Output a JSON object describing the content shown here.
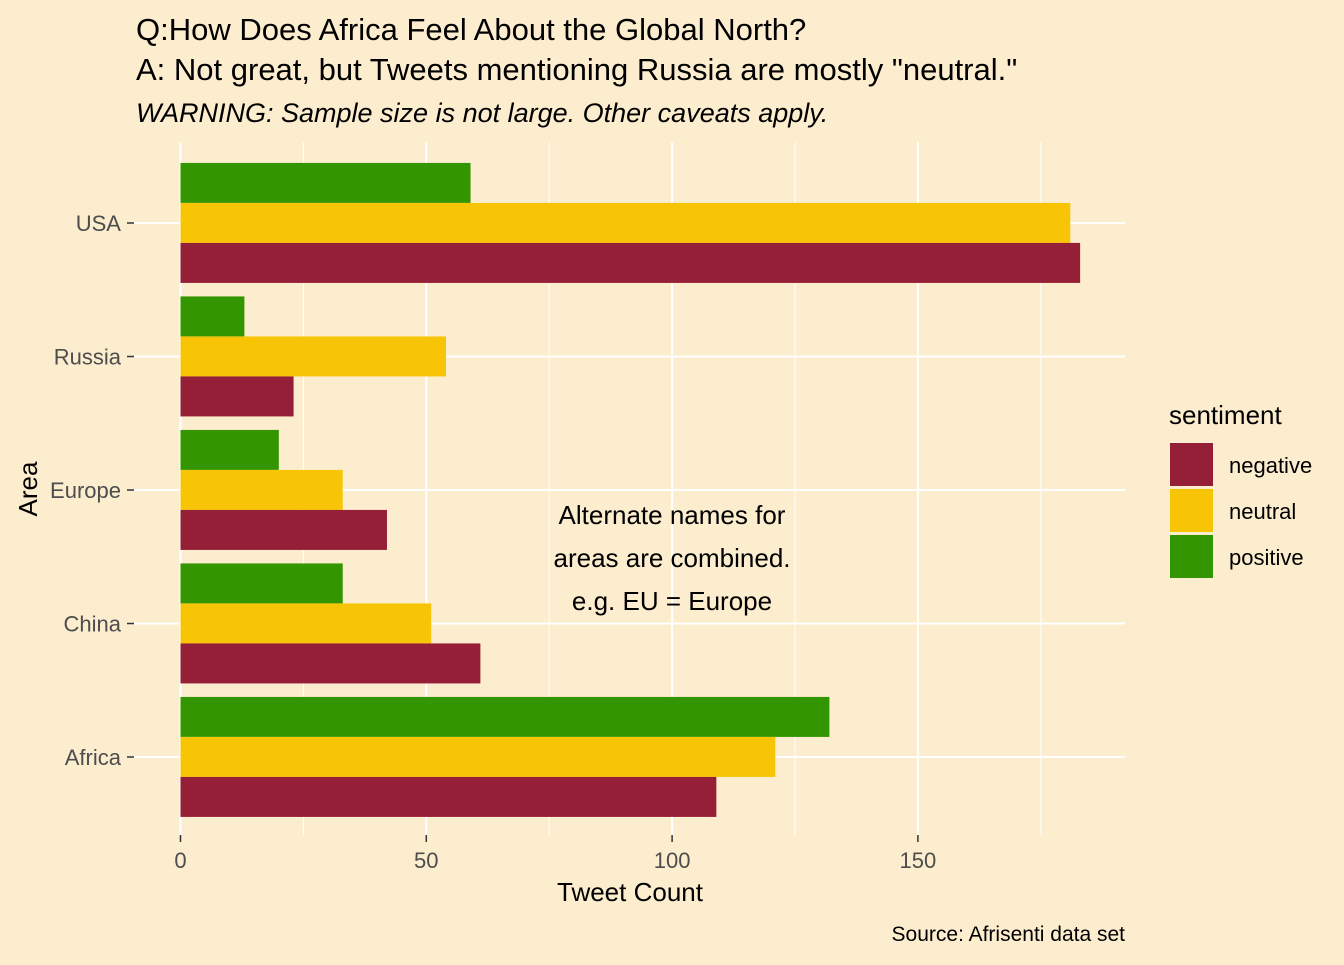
{
  "chart_data": {
    "type": "bar",
    "orientation": "horizontal",
    "title": "Q:How Does Africa Feel About the Global North?",
    "subtitle_line": "A: Not great, but Tweets mentioning Russia are mostly \"neutral.\"",
    "subtitle": "WARNING: Sample size is not large. Other caveats apply.",
    "xlabel": "Tweet Count",
    "ylabel": "Area",
    "caption": "Source: Afrisenti data set",
    "annotation": [
      "Alternate names for",
      "areas are combined.",
      "e.g. EU = Europe"
    ],
    "categories": [
      "Africa",
      "China",
      "Europe",
      "Russia",
      "USA"
    ],
    "xlim": [
      0,
      192
    ],
    "xticks": [
      0,
      50,
      100,
      150
    ],
    "grid": true,
    "legend": {
      "title": "sentiment",
      "position": "right",
      "entries": [
        "negative",
        "neutral",
        "positive"
      ]
    },
    "series": [
      {
        "name": "negative",
        "color": "#961F38",
        "values": [
          109,
          61,
          42,
          23,
          183
        ]
      },
      {
        "name": "neutral",
        "color": "#F8C506",
        "values": [
          121,
          51,
          33,
          54,
          181
        ]
      },
      {
        "name": "positive",
        "color": "#339601",
        "values": [
          132,
          33,
          20,
          13,
          59
        ]
      }
    ]
  }
}
